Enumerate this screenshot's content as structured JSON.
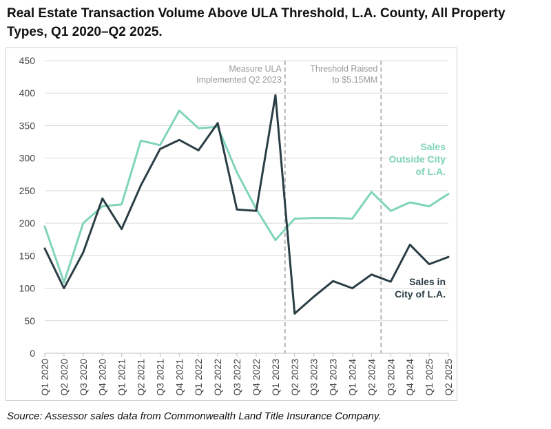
{
  "title": "Real Estate Transaction Volume Above ULA Threshold, L.A. County, All Property Types, Q1 2020–Q2 2025.",
  "source": "Source: Assessor sales data from Commonwealth Land Title Insurance Company.",
  "chart_data": {
    "type": "line",
    "categories": [
      "Q1 2020",
      "Q2 2020",
      "Q3 2020",
      "Q4 2020",
      "Q1 2021",
      "Q2 2021",
      "Q3 2021",
      "Q4 2021",
      "Q1 2022",
      "Q2 2022",
      "Q3 2022",
      "Q4 2022",
      "Q1 2023",
      "Q2 2023",
      "Q3 2023",
      "Q4 2023",
      "Q1 2024",
      "Q2 2024",
      "Q3 2024",
      "Q4 2024",
      "Q1 2025",
      "Q2 2025"
    ],
    "ylim": [
      0,
      450
    ],
    "yticks": [
      0,
      50,
      100,
      150,
      200,
      250,
      300,
      350,
      400,
      450
    ],
    "grid": true,
    "series": [
      {
        "name_lines": [
          "Sales",
          "Outside City",
          "of L.A."
        ],
        "color": "#7fd4bb",
        "values": [
          195,
          109,
          200,
          226,
          229,
          327,
          320,
          373,
          346,
          348,
          278,
          222,
          174,
          207,
          208,
          208,
          207,
          248,
          219,
          232,
          226,
          245
        ]
      },
      {
        "name_lines": [
          "Sales in",
          "City of L.A."
        ],
        "color": "#2b3d45",
        "values": [
          161,
          100,
          155,
          238,
          191,
          258,
          314,
          328,
          312,
          354,
          221,
          219,
          397,
          61,
          87,
          111,
          100,
          121,
          110,
          167,
          137,
          148
        ]
      }
    ],
    "annotations": [
      {
        "after_index": 12,
        "lines": [
          "Measure ULA",
          "Implemented Q2 2023"
        ]
      },
      {
        "after_index": 17,
        "lines": [
          "Threshold Raised",
          "to $5.15MM"
        ]
      }
    ]
  }
}
